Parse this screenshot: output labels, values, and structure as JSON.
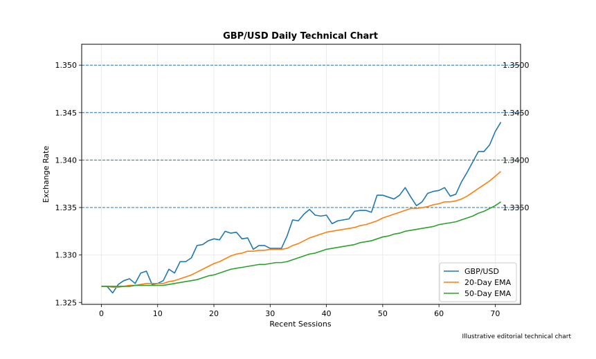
{
  "chart_data": {
    "type": "line",
    "title": "GBP/USD Daily Technical Chart",
    "xlabel": "Recent Sessions",
    "ylabel": "Exchange Rate",
    "xlim": [
      -3.5,
      74.5
    ],
    "ylim": [
      1.3248,
      1.3522
    ],
    "xticks": [
      0,
      10,
      20,
      30,
      40,
      50,
      60,
      70
    ],
    "yticks": [
      1.325,
      1.33,
      1.335,
      1.34,
      1.345,
      1.35
    ],
    "ytick_labels": [
      "1.325",
      "1.330",
      "1.335",
      "1.340",
      "1.345",
      "1.350"
    ],
    "grid": true,
    "legend_position": "lower-right",
    "reference_levels": [
      {
        "value": 1.35,
        "label": "1.3500"
      },
      {
        "value": 1.345,
        "label": "1.3450"
      },
      {
        "value": 1.34,
        "label": "1.3400"
      },
      {
        "value": 1.335,
        "label": "1.3350"
      }
    ],
    "reference_color": "#1f77b4",
    "x": [
      0,
      1,
      2,
      3,
      4,
      5,
      6,
      7,
      8,
      9,
      10,
      11,
      12,
      13,
      14,
      15,
      16,
      17,
      18,
      19,
      20,
      21,
      22,
      23,
      24,
      25,
      26,
      27,
      28,
      29,
      30,
      31,
      32,
      33,
      34,
      35,
      36,
      37,
      38,
      39,
      40,
      41,
      42,
      43,
      44,
      45,
      46,
      47,
      48,
      49,
      50,
      51,
      52,
      53,
      54,
      55,
      56,
      57,
      58,
      59,
      60,
      61,
      62,
      63,
      64,
      65,
      66,
      67,
      68,
      69,
      70,
      71
    ],
    "series": [
      {
        "name": "GBP/USD",
        "color": "#1f77b4",
        "values": [
          1.3267,
          1.3267,
          1.326,
          1.3269,
          1.3273,
          1.3275,
          1.327,
          1.3281,
          1.3283,
          1.3269,
          1.327,
          1.3273,
          1.3285,
          1.3281,
          1.3293,
          1.3293,
          1.3297,
          1.331,
          1.3311,
          1.3315,
          1.3317,
          1.3316,
          1.3325,
          1.3323,
          1.3324,
          1.3317,
          1.3318,
          1.3306,
          1.331,
          1.331,
          1.3307,
          1.3307,
          1.3307,
          1.332,
          1.3337,
          1.3336,
          1.3343,
          1.3348,
          1.3342,
          1.3341,
          1.3342,
          1.3333,
          1.3336,
          1.3337,
          1.3338,
          1.3346,
          1.3347,
          1.3347,
          1.3345,
          1.3363,
          1.3363,
          1.3361,
          1.3359,
          1.3363,
          1.3371,
          1.3361,
          1.3352,
          1.3356,
          1.3365,
          1.3367,
          1.3368,
          1.3371,
          1.3362,
          1.3364,
          1.3377,
          1.3387,
          1.3398,
          1.3409,
          1.3409,
          1.3416,
          1.343,
          1.344
        ]
      },
      {
        "name": "20-Day EMA",
        "color": "#ff7f0e",
        "values": [
          1.3267,
          1.3267,
          1.3266,
          1.3266,
          1.3267,
          1.3268,
          1.3268,
          1.3269,
          1.327,
          1.327,
          1.327,
          1.327,
          1.3272,
          1.3273,
          1.3275,
          1.3277,
          1.3279,
          1.3282,
          1.3285,
          1.3288,
          1.3291,
          1.3293,
          1.3296,
          1.3299,
          1.3301,
          1.3302,
          1.3304,
          1.3304,
          1.3305,
          1.3305,
          1.3306,
          1.3306,
          1.3306,
          1.3307,
          1.331,
          1.3312,
          1.3315,
          1.3318,
          1.332,
          1.3322,
          1.3324,
          1.3325,
          1.3326,
          1.3327,
          1.3328,
          1.3329,
          1.3331,
          1.3332,
          1.3334,
          1.3336,
          1.3339,
          1.3341,
          1.3343,
          1.3345,
          1.3347,
          1.3349,
          1.3349,
          1.335,
          1.3351,
          1.3353,
          1.3354,
          1.3356,
          1.3356,
          1.3357,
          1.3359,
          1.3362,
          1.3366,
          1.337,
          1.3374,
          1.3378,
          1.3383,
          1.3388
        ]
      },
      {
        "name": "50-Day EMA",
        "color": "#2ca02c",
        "values": [
          1.3267,
          1.3267,
          1.3267,
          1.3267,
          1.3267,
          1.3267,
          1.3268,
          1.3268,
          1.3268,
          1.3268,
          1.3268,
          1.3268,
          1.3269,
          1.327,
          1.3271,
          1.3272,
          1.3273,
          1.3274,
          1.3276,
          1.3278,
          1.3279,
          1.3281,
          1.3283,
          1.3285,
          1.3286,
          1.3287,
          1.3288,
          1.3289,
          1.329,
          1.329,
          1.3291,
          1.3292,
          1.3292,
          1.3293,
          1.3295,
          1.3297,
          1.3299,
          1.3301,
          1.3302,
          1.3304,
          1.3306,
          1.3307,
          1.3308,
          1.3309,
          1.331,
          1.3311,
          1.3313,
          1.3314,
          1.3315,
          1.3317,
          1.3319,
          1.332,
          1.3322,
          1.3323,
          1.3325,
          1.3326,
          1.3327,
          1.3328,
          1.3329,
          1.333,
          1.3332,
          1.3333,
          1.3334,
          1.3335,
          1.3337,
          1.3339,
          1.3341,
          1.3344,
          1.3346,
          1.3349,
          1.3352,
          1.3356
        ]
      }
    ]
  },
  "footnote": "Illustrative editorial technical chart"
}
